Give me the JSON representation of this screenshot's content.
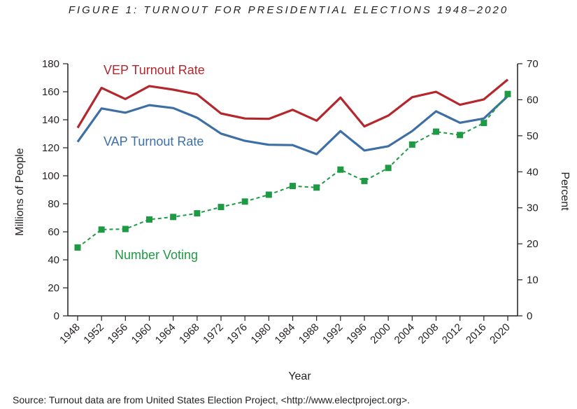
{
  "figure": {
    "title": "FIGURE 1: TURNOUT FOR PRESIDENTIAL ELECTIONS 1948–2020",
    "source": "Source: Turnout data are from United States Election Project, <http://www.electproject.org>."
  },
  "chart_data": {
    "type": "line",
    "xlabel": "Year",
    "ylabel_left": "Millions of People",
    "ylabel_right": "Percent",
    "x": [
      1948,
      1952,
      1956,
      1960,
      1964,
      1968,
      1972,
      1976,
      1980,
      1984,
      1988,
      1992,
      1996,
      2000,
      2004,
      2008,
      2012,
      2016,
      2020
    ],
    "y_left_range": [
      0,
      180
    ],
    "y_left_ticks": [
      0,
      20,
      40,
      60,
      80,
      100,
      120,
      140,
      160,
      180
    ],
    "y_right_range": [
      0,
      70
    ],
    "y_right_ticks": [
      0,
      10,
      20,
      30,
      40,
      50,
      60,
      70
    ],
    "grid": false,
    "series": [
      {
        "name": "VEP Turnout Rate",
        "axis": "right",
        "color": "#b3272d",
        "style": "solid",
        "values": [
          52.2,
          63.3,
          60.2,
          63.8,
          62.8,
          61.5,
          56.2,
          54.8,
          54.7,
          57.2,
          54.2,
          60.6,
          52.6,
          55.6,
          60.7,
          62.2,
          58.6,
          60.1,
          65.6
        ]
      },
      {
        "name": "VAP Turnout Rate",
        "axis": "right",
        "color": "#3d6fa5",
        "style": "solid",
        "values": [
          48.3,
          57.6,
          56.4,
          58.5,
          57.7,
          55.0,
          50.6,
          48.6,
          47.5,
          47.4,
          44.9,
          51.3,
          45.9,
          47.1,
          51.3,
          56.8,
          53.6,
          54.8,
          61.0
        ]
      },
      {
        "name": "Number Voting",
        "axis": "left",
        "color": "#1e9a45",
        "style": "dashed",
        "marker": "square",
        "values": [
          48.8,
          61.6,
          62.0,
          68.8,
          70.6,
          73.2,
          77.7,
          81.6,
          86.5,
          92.7,
          91.6,
          104.4,
          96.3,
          105.6,
          122.3,
          131.5,
          129.1,
          137.7,
          158.4
        ]
      }
    ]
  }
}
